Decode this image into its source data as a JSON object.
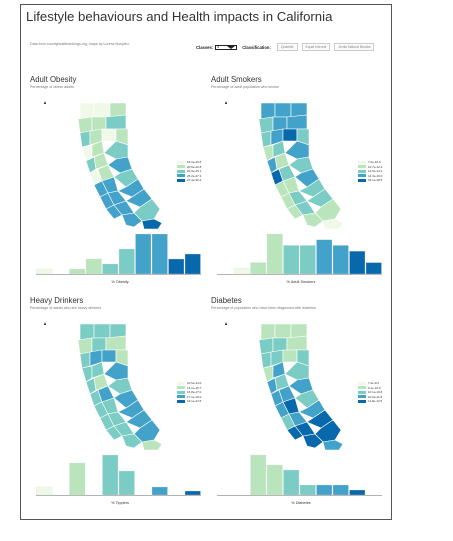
{
  "title": "Lifestyle behaviours and Health impacts in California",
  "credits": "Data from countyhealthrankings.org, maps by Lorenz Nuspleu.",
  "controls": {
    "classes_label": "Classes:",
    "classes_value": "5",
    "classification_label": "Classification:",
    "buttons": [
      "Quantile",
      "Equal Interval",
      "Jenks Natural Breaks"
    ]
  },
  "colors": {
    "c1": "#f0f9e8",
    "c2": "#bae4bc",
    "c3": "#7bccc4",
    "c4": "#43a2ca",
    "c5": "#0868ac"
  },
  "icons": {
    "north_arrow": "north-arrow-icon",
    "dropdown": "chevron-down-icon"
  },
  "panels": [
    {
      "title": "Adult Obesity",
      "subtitle": "Percentage of obese adults",
      "legend": [
        "19.0e-20.5",
        "20.6e-22.8",
        "22.9e-25.1",
        "25.2e-27.3",
        "27.4e-30.4"
      ],
      "xlabel": "% Obesity",
      "chart_data": {
        "type": "bar",
        "categories": [
          "",
          "",
          "",
          "",
          "",
          "",
          "",
          "",
          "",
          ""
        ],
        "values": [
          1,
          0,
          1,
          3,
          2,
          5,
          8,
          8,
          3,
          4
        ],
        "xlabel": "% Obesity"
      }
    },
    {
      "title": "Adult Smokers",
      "subtitle": "Percentage of adult population who smoke",
      "legend": [
        "7.0e-10.6",
        "10.7e-12.4",
        "12.5e-14.2",
        "14.3e-16.0",
        "16.1e-18.5"
      ],
      "xlabel": "% Adult Smokers",
      "chart_data": {
        "type": "bar",
        "categories": [
          "",
          "",
          "",
          "",
          "",
          "",
          "",
          "",
          "",
          ""
        ],
        "values": [
          0,
          1,
          2,
          7,
          5,
          5,
          6,
          5,
          4,
          2
        ],
        "xlabel": "% Adult Smokers"
      }
    },
    {
      "title": "Heavy Drinkers",
      "subtitle": "Percentage of adults who are heavy drinkers",
      "legend": [
        "10.5e-14.0",
        "14.1e-15.7",
        "15.8e-17.0",
        "17.1e-19.0",
        "19.1e-24.5"
      ],
      "xlabel": "% Tipplers",
      "chart_data": {
        "type": "bar",
        "categories": [
          "",
          "",
          "",
          "",
          "",
          "",
          "",
          "",
          "",
          ""
        ],
        "values": [
          1,
          0,
          4,
          0,
          5,
          3,
          0,
          1,
          0,
          0.5
        ],
        "xlabel": "% Tipplers"
      }
    },
    {
      "title": "Diabetes",
      "subtitle": "Percentage of population who have been diagnosed with diabetes",
      "legend": [
        "7.0e-9.0",
        "9.1e-10.0",
        "10.1e-10.8",
        "10.9e-11.8",
        "11.9e-13.5"
      ],
      "xlabel": "% Diabetes",
      "chart_data": {
        "type": "bar",
        "categories": [
          "",
          "",
          "",
          "",
          "",
          "",
          "",
          "",
          "",
          ""
        ],
        "values": [
          0,
          0,
          8,
          6,
          5,
          2,
          2,
          2,
          1,
          0
        ],
        "xlabel": "% Diabetes"
      }
    }
  ]
}
